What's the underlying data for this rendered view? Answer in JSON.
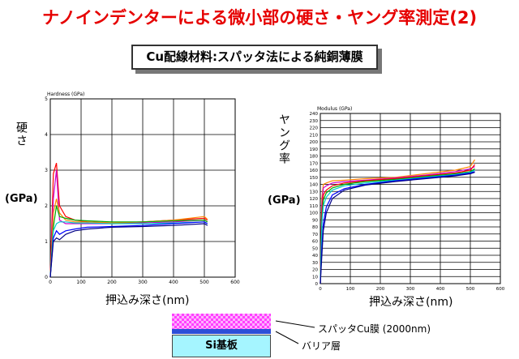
{
  "title": "ナノインデンターによる微小部の硬さ・ヤング率測定(2)",
  "subtitle": "Cu配線材料:スパッタ法による純銅薄膜",
  "left_ylabel_jp": "硬さ",
  "left_ylabel_unit": "(GPa)",
  "right_ylabel_jp": "ヤング率",
  "right_ylabel_unit": "(GPa)",
  "layers": {
    "film": "スパッタCu膜 (2000nm)",
    "barrier": "バリア層",
    "substrate": "Si基板"
  },
  "chart_data": [
    {
      "type": "line",
      "title": "Hardness (GPa)",
      "xlabel": "押込み深さ(nm)",
      "ylabel": "硬さ (GPa)",
      "xlim": [
        0,
        600
      ],
      "ylim": [
        0,
        5
      ],
      "xticks": [
        0,
        100,
        200,
        300,
        400,
        500,
        600
      ],
      "yticks": [
        0,
        1,
        2,
        3,
        4,
        5
      ],
      "grid": true,
      "series": [
        {
          "color": "#ff0000",
          "x": [
            0,
            10,
            20,
            30,
            50,
            80,
            120,
            200,
            300,
            400,
            500,
            510
          ],
          "y": [
            0,
            2.9,
            3.2,
            2.0,
            1.7,
            1.6,
            1.55,
            1.52,
            1.55,
            1.6,
            1.65,
            1.6
          ]
        },
        {
          "color": "#cc00cc",
          "x": [
            0,
            10,
            20,
            30,
            50,
            80,
            120,
            200,
            300,
            400,
            500,
            510
          ],
          "y": [
            0,
            2.2,
            3.0,
            1.6,
            1.5,
            1.5,
            1.5,
            1.5,
            1.52,
            1.55,
            1.6,
            1.55
          ]
        },
        {
          "color": "#ff8800",
          "x": [
            0,
            10,
            20,
            30,
            50,
            80,
            120,
            200,
            300,
            400,
            500,
            510
          ],
          "y": [
            0,
            1.8,
            2.2,
            1.8,
            1.6,
            1.55,
            1.55,
            1.52,
            1.55,
            1.6,
            1.7,
            1.62
          ]
        },
        {
          "color": "#00aa00",
          "x": [
            0,
            10,
            20,
            30,
            50,
            80,
            120,
            200,
            300,
            400,
            500,
            510
          ],
          "y": [
            0,
            1.4,
            2.0,
            1.7,
            1.65,
            1.6,
            1.58,
            1.55,
            1.55,
            1.58,
            1.6,
            1.55
          ]
        },
        {
          "color": "#00cccc",
          "x": [
            0,
            10,
            20,
            30,
            50,
            80,
            120,
            200,
            300,
            400,
            500,
            510
          ],
          "y": [
            0,
            1.3,
            1.5,
            1.55,
            1.55,
            1.52,
            1.52,
            1.5,
            1.5,
            1.52,
            1.55,
            1.5
          ]
        },
        {
          "color": "#0000ff",
          "x": [
            0,
            10,
            20,
            30,
            50,
            80,
            120,
            200,
            300,
            400,
            500,
            510
          ],
          "y": [
            0,
            1.1,
            1.3,
            1.2,
            1.3,
            1.35,
            1.4,
            1.42,
            1.45,
            1.5,
            1.55,
            1.5
          ]
        },
        {
          "color": "#000088",
          "x": [
            0,
            10,
            20,
            30,
            50,
            80,
            120,
            200,
            300,
            400,
            500,
            510
          ],
          "y": [
            0,
            1.0,
            1.1,
            1.05,
            1.2,
            1.3,
            1.35,
            1.4,
            1.42,
            1.45,
            1.5,
            1.45
          ]
        }
      ]
    },
    {
      "type": "line",
      "title": "Modulus (GPa)",
      "xlabel": "押込み深さ(nm)",
      "ylabel": "ヤング率 (GPa)",
      "xlim": [
        0,
        600
      ],
      "ylim": [
        0,
        240
      ],
      "xticks": [
        0,
        100,
        200,
        300,
        400,
        500,
        600
      ],
      "yticks": [
        0,
        10,
        20,
        30,
        40,
        50,
        60,
        70,
        80,
        90,
        100,
        110,
        120,
        130,
        140,
        150,
        160,
        170,
        180,
        190,
        200,
        210,
        220,
        230,
        240
      ],
      "grid": true,
      "series": [
        {
          "color": "#ff8800",
          "x": [
            0,
            5,
            10,
            20,
            40,
            80,
            150,
            250,
            350,
            450,
            500,
            515
          ],
          "y": [
            0,
            120,
            140,
            142,
            145,
            146,
            148,
            150,
            155,
            160,
            165,
            175
          ]
        },
        {
          "color": "#cc00cc",
          "x": [
            0,
            5,
            10,
            20,
            40,
            80,
            150,
            250,
            350,
            450,
            500,
            515
          ],
          "y": [
            0,
            110,
            135,
            138,
            142,
            144,
            146,
            149,
            153,
            158,
            162,
            165
          ]
        },
        {
          "color": "#ff0000",
          "x": [
            0,
            5,
            10,
            20,
            40,
            80,
            150,
            250,
            350,
            450,
            500,
            515
          ],
          "y": [
            0,
            100,
            125,
            132,
            138,
            142,
            145,
            148,
            152,
            156,
            160,
            168
          ]
        },
        {
          "color": "#00aa00",
          "x": [
            0,
            5,
            10,
            20,
            40,
            80,
            150,
            250,
            350,
            450,
            500,
            515
          ],
          "y": [
            0,
            90,
            118,
            128,
            135,
            140,
            144,
            147,
            151,
            155,
            158,
            162
          ]
        },
        {
          "color": "#00cccc",
          "x": [
            0,
            5,
            10,
            20,
            40,
            80,
            150,
            250,
            350,
            450,
            500,
            515
          ],
          "y": [
            0,
            85,
            110,
            122,
            132,
            138,
            142,
            146,
            150,
            154,
            157,
            160
          ]
        },
        {
          "color": "#0000ff",
          "x": [
            0,
            5,
            10,
            20,
            40,
            80,
            150,
            250,
            350,
            450,
            500,
            515
          ],
          "y": [
            0,
            50,
            85,
            108,
            125,
            134,
            140,
            145,
            149,
            153,
            156,
            158
          ]
        },
        {
          "color": "#000088",
          "x": [
            0,
            5,
            10,
            20,
            40,
            80,
            150,
            250,
            350,
            450,
            500,
            515
          ],
          "y": [
            0,
            40,
            75,
            100,
            120,
            132,
            139,
            144,
            148,
            152,
            155,
            157
          ]
        }
      ]
    }
  ]
}
